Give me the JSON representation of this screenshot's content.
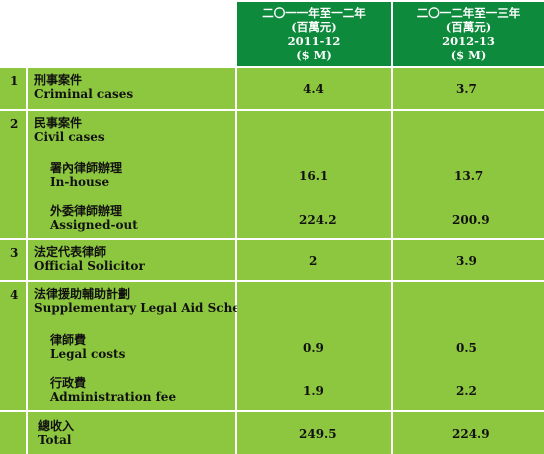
{
  "header": {
    "col1": {
      "line1": "二〇一一年至一二年",
      "line2": "(百萬元)",
      "line3": "2011-12",
      "line4": "($ M)"
    },
    "col2": {
      "line1": "二〇一二年至一三年",
      "line2": "(百萬元)",
      "line3": "2012-13",
      "line4": "($ M)"
    }
  },
  "rows": [
    {
      "num": "1",
      "zh": "刑事案件",
      "en": "Criminal cases",
      "v1": "4.4",
      "v2": "3.7"
    },
    {
      "num": "2",
      "zh": "民事案件",
      "en": "Civil cases",
      "subs": [
        {
          "zh": "署內律師辦理",
          "en": "In-house",
          "v1": "16.1",
          "v2": "13.7"
        },
        {
          "zh": "外委律師辦理",
          "en": "Assigned-out",
          "v1": "224.2",
          "v2": "200.9"
        }
      ]
    },
    {
      "num": "3",
      "zh": "法定代表律師",
      "en": "Official Solicitor",
      "v1": "2",
      "v2": "3.9"
    },
    {
      "num": "4",
      "zh": "法律援助輔助計劃",
      "en": "Supplementary Legal Aid Scheme",
      "subs": [
        {
          "zh": "律師費",
          "en": "Legal costs",
          "v1": "0.9",
          "v2": "0.5"
        },
        {
          "zh": "行政費",
          "en": "Administration fee",
          "v1": "1.9",
          "v2": "2.2"
        }
      ]
    }
  ],
  "total": {
    "zh": "總收入",
    "en": "Total",
    "v1": "249.5",
    "v2": "224.9"
  },
  "colors": {
    "header": "#0d8a3c",
    "body": "#8dc63f",
    "grid": "#ffffff"
  }
}
